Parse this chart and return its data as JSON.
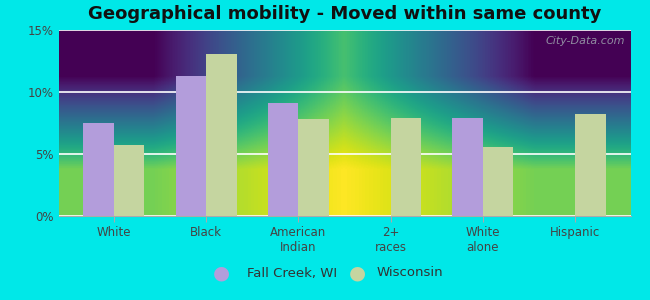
{
  "title": "Geographical mobility - Moved within same county",
  "categories": [
    "White",
    "Black",
    "American\nIndian",
    "2+\nraces",
    "White\nalone",
    "Hispanic"
  ],
  "fall_creek": [
    7.5,
    11.3,
    9.1,
    0,
    7.9,
    0
  ],
  "wisconsin": [
    5.7,
    13.1,
    7.8,
    7.9,
    5.6,
    8.2
  ],
  "fall_creek_color": "#b39ddb",
  "wisconsin_color": "#c5d5a0",
  "background_outer": "#00e8e8",
  "background_inner": "#e8f5e9",
  "bar_width": 0.33,
  "ylim": [
    0,
    15
  ],
  "yticks": [
    0,
    5,
    10,
    15
  ],
  "ytick_labels": [
    "0%",
    "5%",
    "10%",
    "15%"
  ],
  "legend_labels": [
    "Fall Creek, WI",
    "Wisconsin"
  ],
  "watermark": "City-Data.com",
  "title_fontsize": 13,
  "tick_fontsize": 8.5,
  "legend_fontsize": 9.5
}
